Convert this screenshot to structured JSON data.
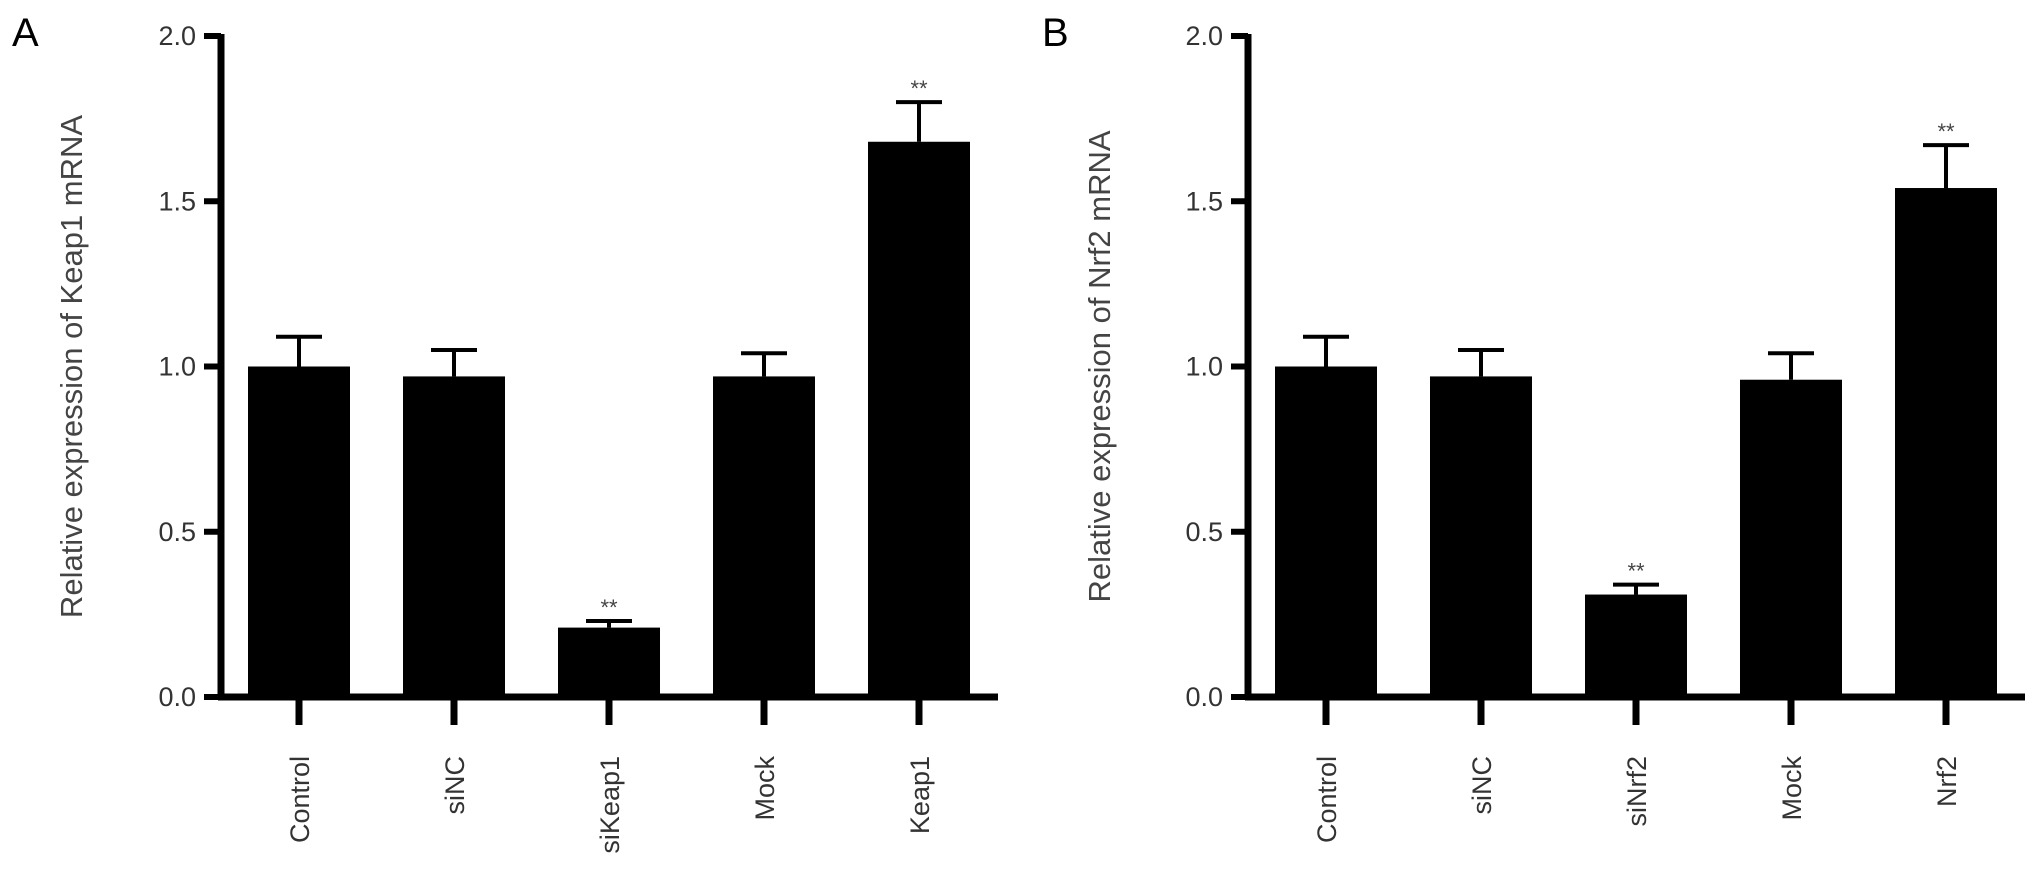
{
  "chart_data": [
    {
      "type": "bar",
      "panel": "A",
      "ylabel": "Relative expression of Keap1 mRNA",
      "ylim": [
        0,
        2.0
      ],
      "yticks": [
        "0.0",
        "0.5",
        "1.0",
        "1.5",
        "2.0"
      ],
      "categories": [
        "Control",
        "siNC",
        "siKeap1",
        "Mock",
        "Keap1"
      ],
      "values": [
        1.0,
        0.97,
        0.21,
        0.97,
        1.68
      ],
      "errors": [
        0.09,
        0.08,
        0.02,
        0.07,
        0.12
      ],
      "significance": [
        "",
        "",
        "**",
        "",
        "**"
      ],
      "grid": false
    },
    {
      "type": "bar",
      "panel": "B",
      "ylabel": "Relative expression of Nrf2 mRNA",
      "ylim": [
        0,
        2.0
      ],
      "yticks": [
        "0.0",
        "0.5",
        "1.0",
        "1.5",
        "2.0"
      ],
      "categories": [
        "Control",
        "siNC",
        "siNrf2",
        "Mock",
        "Nrf2"
      ],
      "values": [
        1.0,
        0.97,
        0.31,
        0.96,
        1.54
      ],
      "errors": [
        0.09,
        0.08,
        0.03,
        0.08,
        0.13
      ],
      "significance": [
        "",
        "",
        "**",
        "",
        "**"
      ],
      "grid": false
    }
  ],
  "colors": {
    "bar": "#000000",
    "axis": "#000000"
  }
}
